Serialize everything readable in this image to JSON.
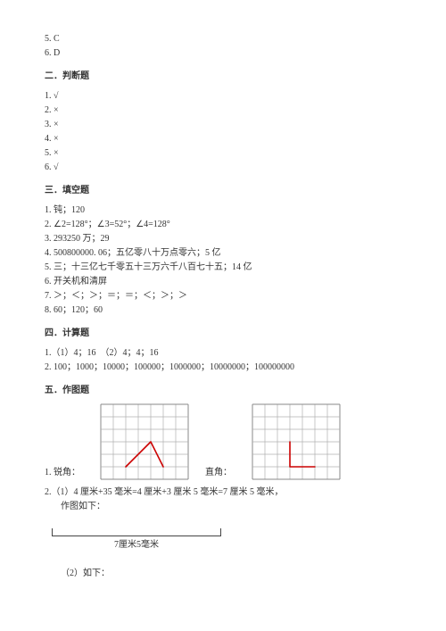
{
  "top_answers": [
    "5. C",
    "6. D"
  ],
  "sections": [
    {
      "title": "二．判断题",
      "lines": [
        "1. √",
        "2. ×",
        "3. ×",
        "4. ×",
        "5. ×",
        "6. √"
      ]
    },
    {
      "title": "三．填空题",
      "lines": [
        "1. 钝；120",
        "2. ∠2=128°；∠3=52°；∠4=128°",
        "3. 293250 万；29",
        "4. 500800000. 06；五亿零八十万点零六；5 亿",
        "5. 三；十三亿七千零五十三万六千八百七十五；14 亿",
        "6. 开关机和清屏",
        "7. ＞；＜；＞；＝；＝；＜；＞；＞",
        "8. 60；120；60"
      ]
    },
    {
      "title": "四．计算题",
      "lines": [
        "1.（1）4；16　（2）4；4；16",
        "2. 100；1000；10000；100000；1000000；10000000；100000000"
      ]
    }
  ],
  "section5": {
    "title": "五．作图题",
    "row1": {
      "prefix": "1. 锐角：",
      "midLabel": "直角：",
      "gridA": {
        "cols": 7,
        "rows": 6,
        "cell": 14,
        "strokeColor": "#b0b0b0",
        "borderColor": "#888888",
        "shape": {
          "color": "#cc0000",
          "points": [
            [
              2,
              5
            ],
            [
              4,
              3
            ],
            [
              5,
              5
            ]
          ],
          "width": 1.6
        }
      },
      "gridB": {
        "cols": 7,
        "rows": 6,
        "cell": 14,
        "strokeColor": "#b0b0b0",
        "borderColor": "#888888",
        "shape": {
          "color": "#cc0000",
          "points": [
            [
              3,
              3
            ],
            [
              3,
              5
            ],
            [
              5,
              5
            ]
          ],
          "width": 1.6
        }
      }
    },
    "line2": "2.（1）4 厘米+35 毫米=4 厘米+3 厘米 5 毫米=7 厘米 5 毫米，",
    "line2b": "作图如下：",
    "segmentLabel": "7厘米5毫米",
    "line3": "（2）如下："
  },
  "colors": {
    "text": "#333333",
    "background": "#ffffff"
  }
}
